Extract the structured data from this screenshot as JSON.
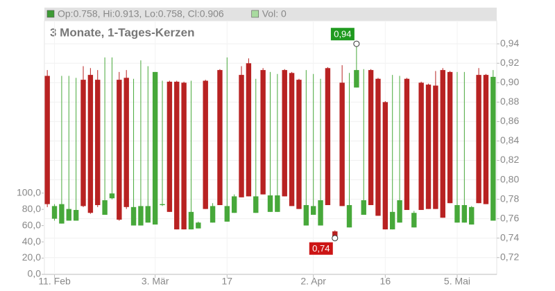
{
  "chart_data": {
    "type": "candlestick",
    "header_legend": [
      {
        "text": "Op:0.758, Hi:0.913, Lo:0.758, Cl:0.906",
        "color": "#3d9b35"
      },
      {
        "text": "Vol: 0",
        "color": "#a9dba0"
      }
    ],
    "subtitle": "3 Monate, 1-Tages-Kerzen",
    "categories": [
      null,
      "11. Feb",
      null,
      null,
      null,
      null,
      null,
      null,
      null,
      null,
      null,
      null,
      null,
      null,
      null,
      "3. Mär",
      null,
      null,
      null,
      null,
      null,
      null,
      null,
      null,
      null,
      "17",
      null,
      null,
      null,
      null,
      null,
      null,
      null,
      null,
      null,
      null,
      null,
      "2. Apr",
      null,
      null,
      null,
      null,
      null,
      null,
      null,
      null,
      null,
      "16",
      null,
      null,
      null,
      null,
      null,
      null,
      null,
      null,
      null,
      "5. Mai",
      null,
      null,
      null,
      null,
      null
    ],
    "open": [
      0.907,
      0.76,
      0.755,
      0.758,
      0.758,
      0.903,
      0.908,
      0.903,
      0.764,
      0.781,
      0.903,
      0.905,
      0.753,
      0.753,
      0.756,
      0.754,
      0.774,
      0.901,
      0.901,
      0.9,
      0.749,
      0.75,
      0.902,
      0.756,
      0.913,
      0.757,
      0.766,
      0.908,
      0.92,
      0.766,
      0.913,
      0.767,
      0.767,
      0.913,
      0.91,
      0.903,
      0.753,
      0.764,
      0.753,
      0.915,
      0.747,
      0.9,
      0.751,
      0.895,
      0.764,
      0.913,
      0.904,
      0.88,
      0.749,
      0.756,
      0.904,
      0.751,
      0.9,
      0.898,
      0.897,
      0.913,
      0.911,
      0.756,
      0.756,
      0.754,
      0.908,
      0.908,
      0.758
    ],
    "high": [
      0.913,
      0.775,
      0.907,
      0.907,
      0.905,
      0.917,
      0.915,
      0.913,
      0.926,
      0.926,
      0.911,
      0.913,
      0.904,
      0.923,
      0.917,
      0.911,
      0.902,
      0.902,
      0.902,
      0.901,
      0.902,
      0.757,
      0.903,
      0.776,
      0.914,
      0.926,
      0.785,
      0.917,
      0.925,
      0.904,
      0.915,
      0.911,
      0.909,
      0.914,
      0.911,
      0.904,
      0.913,
      0.909,
      0.904,
      0.916,
      0.748,
      0.918,
      0.91,
      0.94,
      0.914,
      0.914,
      0.905,
      0.881,
      0.908,
      0.907,
      0.905,
      0.768,
      0.901,
      0.899,
      0.912,
      0.915,
      0.912,
      0.911,
      0.911,
      0.773,
      0.915,
      0.909,
      0.913
    ],
    "low": [
      0.772,
      0.758,
      0.755,
      0.758,
      0.758,
      0.772,
      0.765,
      0.772,
      0.764,
      0.78,
      0.758,
      0.77,
      0.753,
      0.753,
      0.756,
      0.754,
      0.773,
      0.767,
      0.749,
      0.749,
      0.749,
      0.75,
      0.77,
      0.756,
      0.774,
      0.757,
      0.766,
      0.782,
      0.783,
      0.766,
      0.785,
      0.767,
      0.767,
      0.783,
      0.773,
      0.77,
      0.753,
      0.764,
      0.753,
      0.774,
      0.74,
      0.773,
      0.751,
      0.895,
      0.764,
      0.774,
      0.763,
      0.749,
      0.749,
      0.756,
      0.769,
      0.751,
      0.769,
      0.77,
      0.77,
      0.761,
      0.776,
      0.756,
      0.756,
      0.754,
      0.776,
      0.775,
      0.758
    ],
    "close": [
      0.775,
      0.773,
      0.775,
      0.77,
      0.769,
      0.773,
      0.766,
      0.774,
      0.779,
      0.786,
      0.759,
      0.772,
      0.772,
      0.773,
      0.773,
      0.911,
      0.775,
      0.767,
      0.749,
      0.749,
      0.767,
      0.756,
      0.77,
      0.773,
      0.774,
      0.773,
      0.783,
      0.782,
      0.783,
      0.783,
      0.785,
      0.784,
      0.784,
      0.783,
      0.773,
      0.77,
      0.774,
      0.773,
      0.779,
      0.774,
      0.741,
      0.773,
      0.774,
      0.913,
      0.779,
      0.774,
      0.763,
      0.749,
      0.767,
      0.779,
      0.769,
      0.766,
      0.769,
      0.77,
      0.77,
      0.761,
      0.776,
      0.774,
      0.774,
      0.772,
      0.776,
      0.775,
      0.906
    ],
    "up_color": "#47a83a",
    "down_color": "#b82222",
    "ylim": [
      0.7027,
      0.9637
    ],
    "yticks": [
      {
        "value": 0.72,
        "label": "0,72"
      },
      {
        "value": 0.74,
        "label": "0,74"
      },
      {
        "value": 0.76,
        "label": "0,76"
      },
      {
        "value": 0.78,
        "label": "0,78"
      },
      {
        "value": 0.8,
        "label": "0,80"
      },
      {
        "value": 0.82,
        "label": "0,82"
      },
      {
        "value": 0.84,
        "label": "0,84"
      },
      {
        "value": 0.86,
        "label": "0,86"
      },
      {
        "value": 0.88,
        "label": "0,88"
      },
      {
        "value": 0.9,
        "label": "0,90"
      },
      {
        "value": 0.92,
        "label": "0,92"
      },
      {
        "value": 0.94,
        "label": "0,94"
      }
    ],
    "y2lim": [
      0,
      312
    ],
    "y2ticks": [
      {
        "value": 0,
        "label": "0,0"
      },
      {
        "value": 20,
        "label": "20,0"
      },
      {
        "value": 40,
        "label": "40,0"
      },
      {
        "value": 60,
        "label": "60,0"
      },
      {
        "value": 80,
        "label": "80,0"
      },
      {
        "value": 100,
        "label": "100,0"
      }
    ],
    "grid": true,
    "annotations": [
      {
        "label": "0,94",
        "value": 0.94,
        "color": "#1f9a1f"
      },
      {
        "label": "0,74",
        "value": 0.74,
        "color": "#cc1515"
      }
    ]
  }
}
